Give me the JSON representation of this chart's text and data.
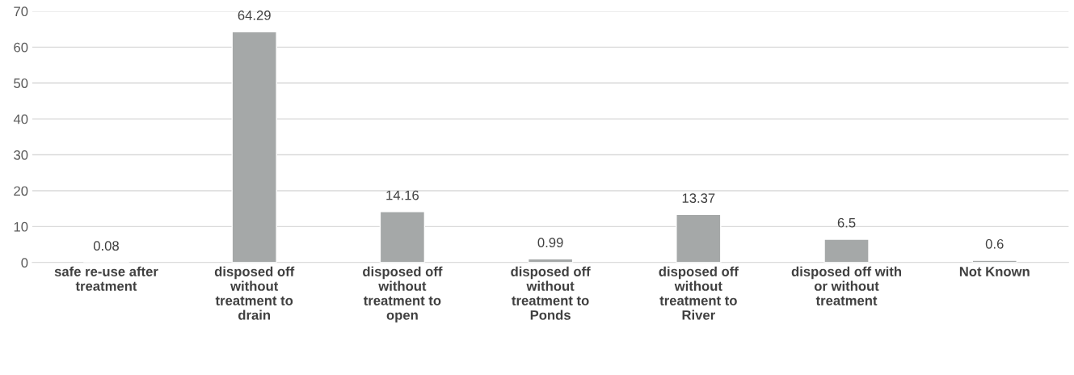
{
  "chart_data": {
    "type": "bar",
    "categories": [
      "safe re-use after\ntreatment",
      "disposed off\nwithout\ntreatment to\ndrain",
      "disposed off\nwithout\ntreatment to\nopen",
      "disposed off\nwithout\ntreatment to\nPonds",
      "disposed off\nwithout\ntreatment to\nRiver",
      "disposed off with\nor without\ntreatment",
      "Not Known"
    ],
    "values": [
      0.08,
      64.29,
      14.16,
      0.99,
      13.37,
      6.5,
      0.6
    ],
    "color": "#a5a8a8",
    "ylim": [
      0,
      70
    ],
    "yticks": [
      0,
      10,
      20,
      30,
      40,
      50,
      60,
      70
    ],
    "grid": "y",
    "data_labels": true,
    "legend": false
  }
}
